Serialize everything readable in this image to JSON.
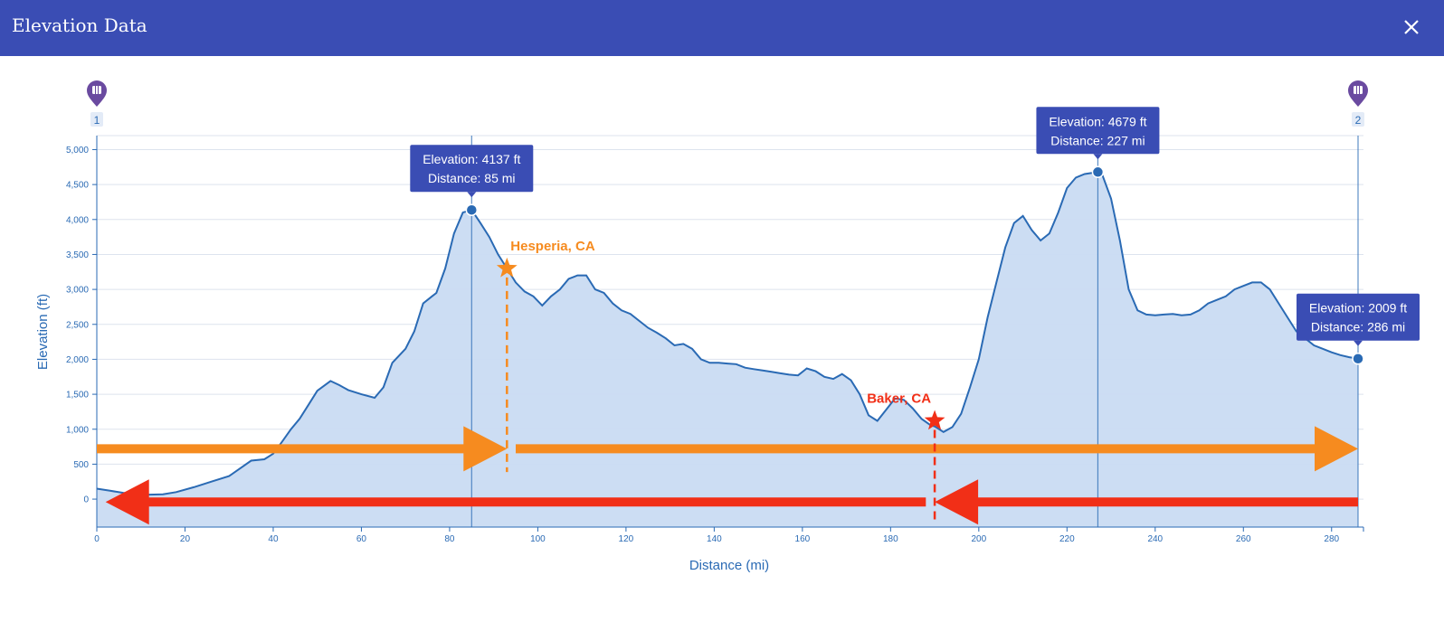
{
  "header": {
    "title": "Elevation Data",
    "close_icon": "close-icon"
  },
  "colors": {
    "header_bg": "#3a4db4",
    "line": "#2a6ab4",
    "fill": "#c9dbf2",
    "axis_text": "#2a6ab4",
    "tooltip_bg": "#3a4db4",
    "marker_pin": "#6a4aa0",
    "orange_arrow": "#f68b1f",
    "red_arrow": "#f12f17"
  },
  "markers": [
    {
      "label": "1",
      "icon": "map-pin-icon",
      "x": 0
    },
    {
      "label": "2",
      "icon": "map-pin-icon",
      "x": 286
    }
  ],
  "tooltips": [
    {
      "elevation": "Elevation: 4137 ft",
      "distance": "Distance: 85 mi",
      "x": 85,
      "y": 4137
    },
    {
      "elevation": "Elevation: 4679 ft",
      "distance": "Distance: 227 mi",
      "x": 227,
      "y": 4679
    },
    {
      "elevation": "Elevation: 2009 ft",
      "distance": "Distance: 286 mi",
      "x": 286,
      "y": 2009
    }
  ],
  "annotations": [
    {
      "label": "Hesperia, CA",
      "x": 93,
      "y": 3300,
      "color": "#f68b1f"
    },
    {
      "label": "Baker, CA",
      "x": 190,
      "y": 1120,
      "color": "#f12f17"
    }
  ],
  "chart_data": {
    "type": "area",
    "title": "",
    "xlabel": "Distance (mi)",
    "ylabel": "Elevation (ft)",
    "xlim": [
      0,
      286
    ],
    "ylim": [
      -400,
      5200
    ],
    "x_ticks": [
      0,
      20,
      40,
      60,
      80,
      100,
      120,
      140,
      160,
      180,
      200,
      220,
      240,
      260,
      280
    ],
    "x_tick_labels": [
      "0",
      "20",
      "40",
      "60",
      "80",
      "100",
      "120",
      "140",
      "160",
      "180",
      "200",
      "220",
      "240",
      "260",
      "280"
    ],
    "y_ticks": [
      0,
      500,
      1000,
      1500,
      2000,
      2500,
      3000,
      3500,
      4000,
      4500,
      5000
    ],
    "y_tick_labels": [
      "0",
      "500",
      "1,000",
      "1,500",
      "2,000",
      "2,500",
      "3,000",
      "3,500",
      "4,000",
      "4,500",
      "5,000"
    ],
    "grid": true,
    "series": [
      {
        "x": [
          0,
          3,
          6,
          10,
          15,
          18,
          22,
          26,
          30,
          35,
          38,
          40,
          42,
          44,
          46,
          48,
          50,
          53,
          55,
          57,
          60,
          63,
          65,
          67,
          70,
          72,
          74,
          76,
          77,
          79,
          81,
          83,
          85,
          87,
          89,
          91,
          93,
          95,
          97,
          99,
          101,
          103,
          105,
          107,
          109,
          111,
          113,
          115,
          117,
          119,
          121,
          123,
          125,
          127,
          129,
          131,
          133,
          135,
          137,
          139,
          141,
          143,
          145,
          147,
          149,
          151,
          153,
          155,
          157,
          159,
          161,
          163,
          165,
          167,
          169,
          171,
          173,
          175,
          177,
          179,
          181,
          183,
          185,
          187,
          189,
          190,
          192,
          194,
          196,
          198,
          200,
          202,
          204,
          206,
          208,
          210,
          212,
          214,
          216,
          218,
          220,
          222,
          224,
          226,
          227,
          228,
          230,
          232,
          234,
          236,
          238,
          240,
          242,
          244,
          246,
          248,
          250,
          252,
          254,
          256,
          258,
          260,
          262,
          264,
          266,
          268,
          270,
          272,
          274,
          276,
          278,
          280,
          282,
          284,
          286
        ],
        "y": [
          150,
          120,
          90,
          60,
          70,
          100,
          170,
          250,
          330,
          550,
          570,
          650,
          820,
          1000,
          1150,
          1350,
          1550,
          1690,
          1630,
          1560,
          1500,
          1450,
          1600,
          1950,
          2150,
          2400,
          2800,
          2900,
          2950,
          3300,
          3800,
          4100,
          4137,
          3950,
          3750,
          3500,
          3300,
          3100,
          2970,
          2900,
          2770,
          2900,
          3000,
          3150,
          3200,
          3200,
          3000,
          2950,
          2800,
          2700,
          2650,
          2550,
          2450,
          2380,
          2300,
          2200,
          2220,
          2150,
          2000,
          1950,
          1950,
          1940,
          1930,
          1880,
          1860,
          1840,
          1820,
          1800,
          1780,
          1770,
          1870,
          1830,
          1750,
          1720,
          1790,
          1700,
          1500,
          1200,
          1120,
          1280,
          1440,
          1420,
          1300,
          1150,
          1060,
          1040,
          960,
          1030,
          1220,
          1600,
          2000,
          2600,
          3100,
          3600,
          3950,
          4050,
          3850,
          3700,
          3800,
          4100,
          4450,
          4600,
          4650,
          4670,
          4679,
          4640,
          4300,
          3700,
          3000,
          2700,
          2640,
          2630,
          2640,
          2650,
          2630,
          2640,
          2700,
          2800,
          2850,
          2900,
          3000,
          3050,
          3100,
          3100,
          3000,
          2800,
          2600,
          2400,
          2300,
          2200,
          2150,
          2100,
          2060,
          2030,
          2009
        ]
      }
    ]
  },
  "arrows": [
    {
      "direction": "right",
      "color": "#f68b1f",
      "from_x": 0,
      "to_x": 93,
      "y": 720
    },
    {
      "direction": "right",
      "color": "#f68b1f",
      "from_x": 95,
      "to_x": 286,
      "y": 720
    },
    {
      "direction": "left",
      "color": "#f12f17",
      "from_x": 188,
      "to_x": 2,
      "y": -40
    },
    {
      "direction": "left",
      "color": "#f12f17",
      "from_x": 286,
      "to_x": 190,
      "y": -40
    }
  ]
}
